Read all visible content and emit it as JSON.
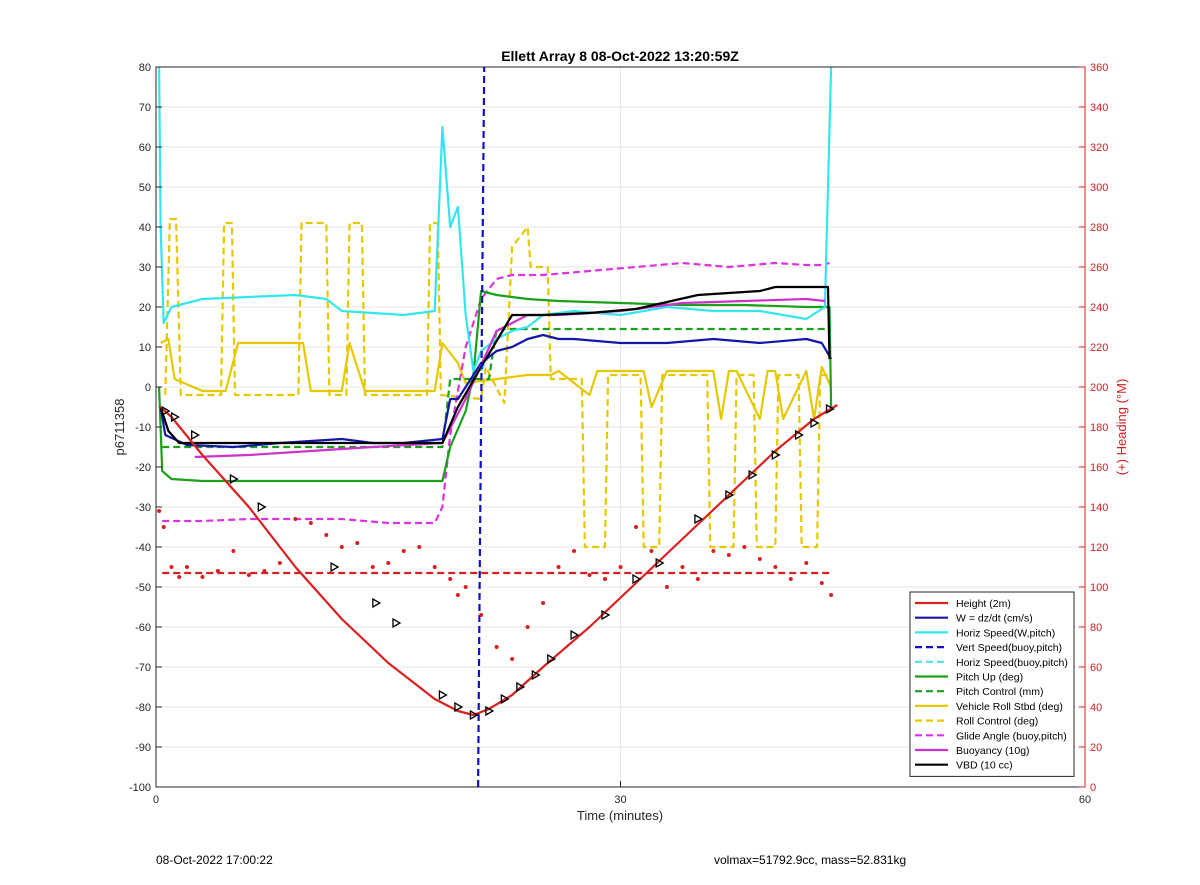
{
  "footer": {
    "left_text": "08-Oct-2022 17:00:22",
    "right_text": "volmax=51792.9cc, mass=52.831kg"
  },
  "chart_data": {
    "type": "line",
    "title": "Ellett Array 8 08-Oct-2022 13:20:59Z",
    "xlabel": "Time (minutes)",
    "ylabel": "p6711358",
    "y2label": "(+) Heading (°M)",
    "xlim": [
      0,
      60
    ],
    "ylim": [
      -100,
      80
    ],
    "y2lim": [
      0,
      360
    ],
    "xticks": [
      0,
      30,
      60
    ],
    "yticks": [
      -100,
      -90,
      -80,
      -70,
      -60,
      -50,
      -40,
      -30,
      -20,
      -10,
      0,
      10,
      20,
      30,
      40,
      50,
      60,
      70,
      80
    ],
    "y2ticks": [
      0,
      20,
      40,
      60,
      80,
      100,
      120,
      140,
      160,
      180,
      200,
      220,
      240,
      260,
      280,
      300,
      320,
      340,
      360
    ],
    "grid": true,
    "legend_position": "bottom-right",
    "colors": {
      "height": "#d92020",
      "w": "#1515a8",
      "horiz": "#33e6ee",
      "vert_buoy": "#1010c8",
      "horiz_buoy": "#55dde8",
      "pitch": "#1aa01a",
      "pitch_ctrl": "#1aa01a",
      "roll": "#e6c800",
      "roll_ctrl": "#e6c800",
      "glide": "#dd33dd",
      "buoy": "#cc33cc",
      "vbd": "#000000",
      "heading": "#d92020",
      "right_axis": "#cc2222"
    },
    "series": [
      {
        "key": "height",
        "name": "Height (2m)",
        "style": "solid",
        "x": [
          0.3,
          1,
          3,
          6,
          9,
          12,
          15,
          18,
          19.5,
          20.5,
          21.5,
          23,
          25,
          28,
          31,
          34,
          37,
          40,
          42.5,
          44
        ],
        "y": [
          -5,
          -7.5,
          -17,
          -30,
          -45,
          -58,
          -69,
          -78,
          -81,
          -82,
          -80.5,
          -77,
          -70,
          -60,
          -49,
          -38,
          -27,
          -16,
          -8,
          -4.5
        ]
      },
      {
        "key": "w",
        "name": "W = dz/dt (cm/s)",
        "style": "solid",
        "x": [
          0.3,
          0.6,
          2,
          5,
          8,
          10,
          12,
          14,
          16,
          18.5,
          19,
          19.5,
          20.5,
          21,
          22,
          23,
          24,
          25,
          26,
          27,
          30,
          33,
          36,
          39,
          42,
          43,
          43.6
        ],
        "y": [
          -5,
          -12,
          -14.5,
          -15,
          -14,
          -13.5,
          -13,
          -14,
          -14,
          -13,
          -3,
          -3,
          3,
          6,
          9,
          10,
          12,
          13,
          12,
          12,
          11,
          11,
          12,
          11,
          12,
          11,
          7
        ]
      },
      {
        "key": "horiz",
        "name": "Horiz Speed(W,pitch)",
        "style": "solid",
        "x": [
          0.2,
          0.3,
          0.5,
          1,
          3,
          6,
          9,
          11,
          12,
          14,
          16,
          18,
          18.5,
          19,
          19.5,
          20,
          20.5,
          21,
          22,
          23,
          24,
          25,
          27,
          30,
          33,
          36,
          39,
          42,
          43.2,
          43.6
        ],
        "y": [
          80,
          40,
          16,
          20,
          22,
          22.5,
          23,
          22,
          19,
          18.5,
          18,
          19,
          65,
          40,
          45,
          18,
          4,
          9,
          12,
          14,
          15,
          18,
          19,
          18,
          20,
          19,
          19,
          17,
          20,
          80
        ]
      },
      {
        "key": "vert_buoy",
        "name": "Vert Speed(buoy,pitch)",
        "style": "dash",
        "x": [
          20.8,
          20.9,
          21.2
        ],
        "y": [
          -100,
          -50,
          80
        ]
      },
      {
        "key": "horiz_buoy",
        "name": "Horiz Speed(buoy,pitch)",
        "style": "dash",
        "x": [
          21,
          21.5
        ],
        "y": [
          4,
          8
        ]
      },
      {
        "key": "pitch",
        "name": "Pitch Up (deg)",
        "style": "solid",
        "x": [
          0.2,
          0.4,
          1,
          3,
          6,
          9,
          12,
          15,
          18.5,
          19,
          20,
          20.5,
          21,
          22,
          24,
          26,
          30,
          34,
          38,
          42,
          43.5,
          43.6
        ],
        "y": [
          0,
          -21,
          -23,
          -23.5,
          -23.5,
          -23.5,
          -23.5,
          -23.5,
          -23.5,
          -15,
          -6,
          3,
          24,
          23,
          22,
          21.5,
          21,
          20.5,
          20.5,
          20,
          20,
          -5
        ]
      },
      {
        "key": "pitch_ctrl",
        "name": "Pitch Control (mm)",
        "style": "dash",
        "x": [
          0.4,
          18.5,
          19,
          21.5,
          22,
          43.5
        ],
        "y": [
          -15,
          -15,
          2,
          2,
          14.5,
          14.5
        ]
      },
      {
        "key": "roll",
        "name": "Vehicle Roll Stbd (deg)",
        "style": "solid",
        "x": [
          0.3,
          0.8,
          1.2,
          3,
          4.5,
          5.3,
          9.5,
          10,
          12,
          12.5,
          13.5,
          18,
          18.5,
          19.5,
          20,
          22,
          24,
          25.5,
          26,
          28,
          28.5,
          31.5,
          32,
          33,
          33.5,
          36,
          36.5,
          37,
          37.5,
          39,
          39.5,
          40,
          40.5,
          42,
          42.5,
          43,
          43.6
        ],
        "y": [
          11,
          12,
          2,
          -1,
          -1,
          11,
          11,
          -1,
          -1,
          11,
          -1,
          -1,
          11,
          6,
          1,
          2,
          3,
          3,
          4,
          -2,
          4,
          4,
          -5,
          4,
          4,
          4,
          -8,
          4,
          4,
          -8,
          4,
          4,
          -8,
          4,
          -8,
          5,
          0
        ]
      },
      {
        "key": "roll_ctrl",
        "name": "Roll Control (deg)",
        "style": "dash",
        "x": [
          0.6,
          0.9,
          1.3,
          1.6,
          4.2,
          4.4,
          4.9,
          5.1,
          9.2,
          9.4,
          11,
          11.2,
          12.3,
          12.5,
          13.3,
          13.5,
          17.5,
          17.7,
          18.2,
          18.4,
          21,
          21.3,
          22.5,
          23,
          24,
          24.2,
          25.3,
          25.5,
          27.5,
          27.7,
          29,
          29.2,
          31.3,
          31.5,
          32.5,
          32.7,
          35.6,
          35.8,
          37.3,
          37.5,
          38.6,
          38.8,
          40,
          40.2,
          41.5,
          41.7,
          42.7,
          42.9,
          43.6
        ],
        "y": [
          -2,
          42,
          42,
          -2,
          -2,
          41,
          41,
          -2,
          -2,
          41,
          41,
          -2,
          -2,
          41,
          41,
          -2,
          -2,
          41,
          41,
          -2,
          -3,
          5,
          -4,
          35,
          40,
          30,
          30,
          2,
          2,
          -40,
          -40,
          3,
          3,
          -40,
          -40,
          3,
          3,
          -40,
          -40,
          3,
          3,
          -40,
          -40,
          3,
          3,
          -40,
          -40,
          3,
          3
        ]
      },
      {
        "key": "glide",
        "name": "Glide Angle (buoy,pitch)",
        "style": "dash",
        "x": [
          0.4,
          3,
          6,
          9,
          12,
          15,
          18,
          18.5,
          19,
          20,
          21,
          22,
          23,
          25,
          28,
          31,
          34,
          37,
          40,
          42,
          43,
          43.5
        ],
        "y": [
          -33.5,
          -33.5,
          -33,
          -33,
          -33,
          -34,
          -34,
          -30,
          -12,
          10,
          22,
          27,
          28,
          28,
          29,
          30,
          31,
          30,
          31,
          30.5,
          30.5,
          31
        ]
      },
      {
        "key": "buoy",
        "name": "Buoyancy (10g)",
        "style": "solid",
        "x": [
          2.5,
          6,
          10,
          14,
          18.5,
          20,
          22,
          24,
          26,
          30,
          34,
          38,
          42,
          43.2
        ],
        "y": [
          -17.5,
          -17,
          -16,
          -15,
          -14,
          -3,
          14,
          18,
          18,
          19,
          21,
          21.5,
          22,
          21.5
        ]
      },
      {
        "key": "vbd",
        "name": "VBD (10 cc)",
        "style": "solid",
        "x": [
          0.3,
          0.8,
          1.5,
          18.5,
          19.5,
          21,
          23,
          25,
          28,
          31,
          35,
          39,
          40,
          43.4,
          43.5
        ],
        "y": [
          -5,
          -11,
          -14,
          -14,
          -5,
          5,
          18,
          18,
          18.5,
          19.5,
          23,
          24,
          25,
          25,
          7
        ]
      },
      {
        "key": "heading",
        "name": "",
        "style": "dash",
        "axis": "right",
        "x": [
          0.4,
          43.6
        ],
        "y": [
          107,
          107
        ]
      }
    ],
    "heading_points": {
      "axis": "right",
      "x": [
        0.2,
        0.5,
        1,
        1.5,
        2,
        3,
        4,
        5,
        6,
        7,
        8,
        9,
        10,
        11,
        12,
        13,
        14,
        15,
        16,
        17,
        18,
        19,
        19.5,
        20,
        21,
        22,
        23,
        24,
        25,
        26,
        27,
        28,
        29,
        30,
        31,
        32,
        33,
        34,
        35,
        36,
        37,
        38,
        39,
        40,
        41,
        42,
        43,
        43.6
      ],
      "y": [
        138,
        130,
        110,
        105,
        110,
        105,
        108,
        118,
        106,
        108,
        112,
        134,
        132,
        126,
        120,
        122,
        110,
        112,
        118,
        120,
        110,
        104,
        96,
        100,
        86,
        70,
        64,
        80,
        92,
        110,
        118,
        106,
        104,
        110,
        130,
        118,
        100,
        110,
        104,
        118,
        116,
        120,
        114,
        110,
        104,
        112,
        102,
        96
      ]
    },
    "triangle_markers": {
      "x": [
        0.6,
        1.2,
        2.5,
        5,
        6.8,
        11.5,
        14.2,
        15.5,
        18.5,
        19.5,
        20.5,
        21.5,
        22.5,
        23.5,
        24.5,
        25.5,
        27,
        29,
        31,
        32.5,
        35,
        37,
        38.5,
        40,
        41.5,
        42.5,
        43.5
      ],
      "y": [
        -6,
        -7.5,
        -12,
        -23,
        -30,
        -45,
        -54,
        -59,
        -77,
        -80,
        -82,
        -81,
        -78,
        -75,
        -72,
        -68,
        -62,
        -57,
        -48,
        -44,
        -33,
        -27,
        -22,
        -17,
        -12,
        -9,
        -5.5
      ]
    }
  }
}
